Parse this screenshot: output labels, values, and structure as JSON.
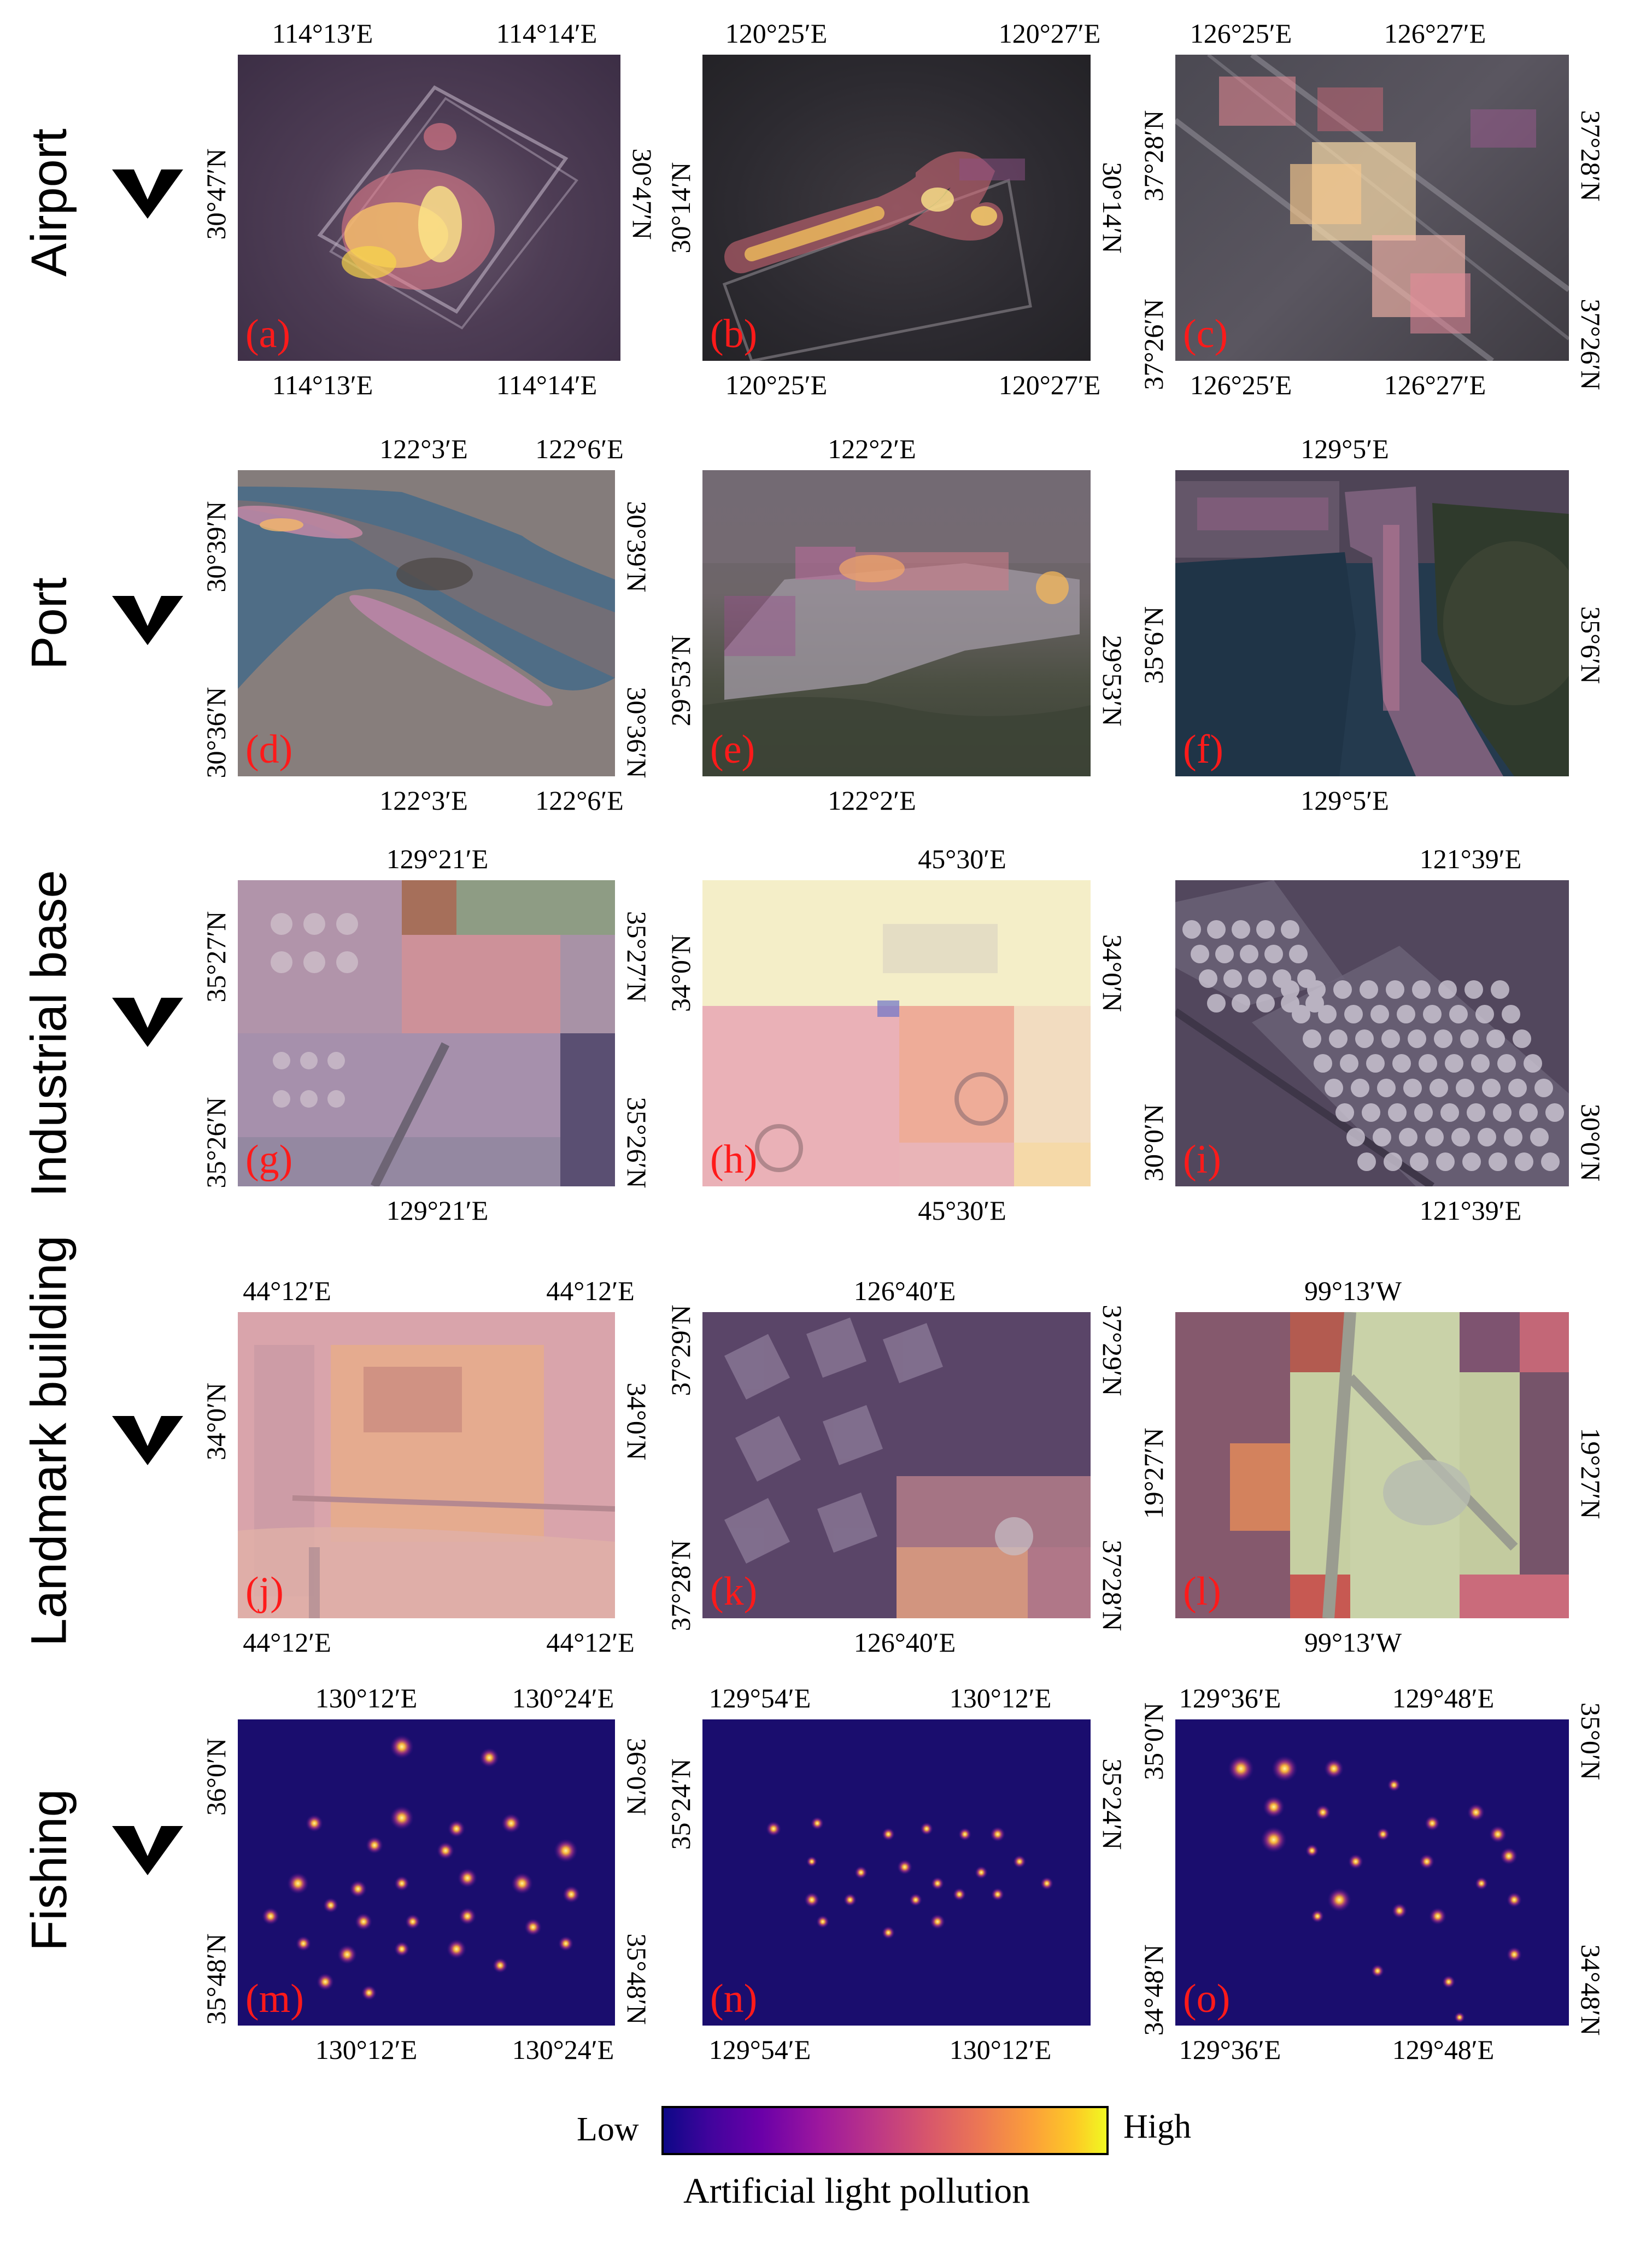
{
  "rows": [
    {
      "label": "Airport",
      "panels": [
        {
          "letter": "(a)",
          "top": [
            "114°13′E",
            "114°14′E"
          ],
          "bottom": [
            "114°13′E",
            "114°14′E"
          ],
          "left": [
            "30°47′N"
          ],
          "right": [
            "30°47′N"
          ]
        },
        {
          "letter": "(b)",
          "top": [
            "120°25′E",
            "120°27′E"
          ],
          "bottom": [
            "120°25′E",
            "120°27′E"
          ],
          "left": [
            "30°14′N"
          ],
          "right": [
            "30°14′N"
          ]
        },
        {
          "letter": "(c)",
          "top": [
            "126°25′E",
            "126°27′E"
          ],
          "bottom": [
            "126°25′E",
            "126°27′E"
          ],
          "left": [
            "37°28′N",
            "37°26′N"
          ],
          "right": [
            "37°28′N",
            "37°26′N"
          ]
        }
      ]
    },
    {
      "label": "Port",
      "panels": [
        {
          "letter": "(d)",
          "top": [
            "122°3′E",
            "122°6′E"
          ],
          "bottom": [
            "122°3′E",
            "122°6′E"
          ],
          "left": [
            "30°39′N",
            "30°36′N"
          ],
          "right": [
            "30°39′N",
            "30°36′N"
          ]
        },
        {
          "letter": "(e)",
          "top": [
            "122°2′E"
          ],
          "bottom": [
            "122°2′E"
          ],
          "left": [
            "29°53′N"
          ],
          "right": [
            "29°53′N"
          ]
        },
        {
          "letter": "(f)",
          "top": [
            "129°5′E"
          ],
          "bottom": [
            "129°5′E"
          ],
          "left": [
            "35°6′N"
          ],
          "right": [
            "35°6′N"
          ]
        }
      ]
    },
    {
      "label": "Industrial base",
      "panels": [
        {
          "letter": "(g)",
          "top": [
            "129°21′E"
          ],
          "bottom": [
            "129°21′E"
          ],
          "left": [
            "35°27′N",
            "35°26′N"
          ],
          "right": [
            "35°27′N",
            "35°26′N"
          ]
        },
        {
          "letter": "(h)",
          "top": [
            "45°30′E"
          ],
          "bottom": [
            "45°30′E"
          ],
          "left": [
            "34°0′N"
          ],
          "right": [
            "34°0′N"
          ]
        },
        {
          "letter": "(i)",
          "top": [
            "121°39′E"
          ],
          "bottom": [
            "121°39′E"
          ],
          "left": [
            "30°0′N"
          ],
          "right": [
            "30°0′N"
          ]
        }
      ]
    },
    {
      "label": "Landmark building",
      "panels": [
        {
          "letter": "(j)",
          "top": [
            "44°12′E",
            "44°12′E"
          ],
          "bottom": [
            "44°12′E",
            "44°12′E"
          ],
          "left": [
            "34°0′N"
          ],
          "right": [
            "34°0′N"
          ]
        },
        {
          "letter": "(k)",
          "top": [
            "126°40′E"
          ],
          "bottom": [
            "126°40′E"
          ],
          "left": [
            "37°29′N",
            "37°28′N"
          ],
          "right": [
            "37°29′N",
            "37°28′N"
          ]
        },
        {
          "letter": "(l)",
          "top": [
            "99°13′W"
          ],
          "bottom": [
            "99°13′W"
          ],
          "left": [
            "19°27′N"
          ],
          "right": [
            "19°27′N"
          ]
        }
      ]
    },
    {
      "label": "Fishing",
      "panels": [
        {
          "letter": "(m)",
          "top": [
            "130°12′E",
            "130°24′E"
          ],
          "bottom": [
            "130°12′E",
            "130°24′E"
          ],
          "left": [
            "36°0′N",
            "35°48′N"
          ],
          "right": [
            "36°0′N",
            "35°48′N"
          ]
        },
        {
          "letter": "(n)",
          "top": [
            "129°54′E",
            "130°12′E"
          ],
          "bottom": [
            "129°54′E",
            "130°12′E"
          ],
          "left": [
            "35°24′N"
          ],
          "right": [
            "35°24′N"
          ]
        },
        {
          "letter": "(o)",
          "top": [
            "129°36′E",
            "129°48′E"
          ],
          "bottom": [
            "129°36′E",
            "129°48′E"
          ],
          "left": [
            "35°0′N",
            "34°48′N"
          ],
          "right": [
            "35°0′N",
            "34°48′N"
          ]
        }
      ]
    }
  ],
  "legend": {
    "low": "Low",
    "high": "High",
    "title": "Artificial light pollution"
  },
  "colors": {
    "tick_label_color": "#ff1a1a",
    "colormap_low": "#0d0887",
    "colormap_high": "#f0f921"
  }
}
